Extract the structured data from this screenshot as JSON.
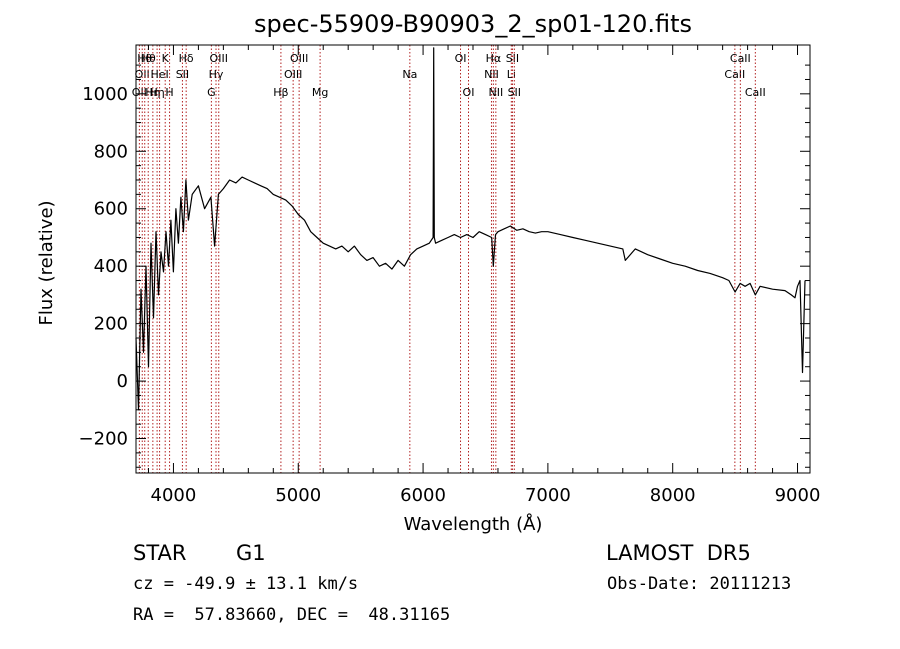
{
  "chart_data": {
    "type": "line",
    "title": "spec-55909-B90903_2_sp01-120.fits",
    "xlabel": "Wavelength (Å)",
    "ylabel": "Flux (relative)",
    "xlim": [
      3700,
      9100
    ],
    "ylim": [
      -320,
      1170
    ],
    "xticks": [
      4000,
      5000,
      6000,
      7000,
      8000,
      9000
    ],
    "yticks": [
      -200,
      0,
      200,
      400,
      600,
      800,
      1000
    ],
    "grid": false,
    "series": [
      {
        "x": [
          3700,
          3720,
          3740,
          3760,
          3780,
          3800,
          3820,
          3840,
          3860,
          3880,
          3900,
          3920,
          3940,
          3960,
          3980,
          4000,
          4020,
          4040,
          4060,
          4080,
          4100,
          4120,
          4150,
          4200,
          4250,
          4300,
          4330,
          4360,
          4400,
          4450,
          4500,
          4550,
          4600,
          4650,
          4700,
          4750,
          4800,
          4850,
          4900,
          4950,
          5000,
          5050,
          5100,
          5150,
          5200,
          5250,
          5300,
          5350,
          5400,
          5450,
          5500,
          5550,
          5600,
          5650,
          5700,
          5750,
          5800,
          5850,
          5900,
          5950,
          6000,
          6050,
          6080,
          6085,
          6090,
          6100,
          6150,
          6200,
          6250,
          6300,
          6350,
          6400,
          6450,
          6500,
          6550,
          6563,
          6580,
          6600,
          6650,
          6700,
          6750,
          6800,
          6850,
          6900,
          6950,
          7000,
          7100,
          7200,
          7300,
          7400,
          7500,
          7600,
          7620,
          7700,
          7800,
          7900,
          8000,
          8100,
          8200,
          8300,
          8400,
          8450,
          8500,
          8540,
          8580,
          8620,
          8662,
          8700,
          8800,
          8900,
          8950,
          8980,
          9000,
          9020,
          9040,
          9060
        ],
        "y": [
          150,
          -100,
          320,
          100,
          400,
          50,
          480,
          220,
          520,
          300,
          450,
          380,
          520,
          400,
          560,
          380,
          600,
          480,
          640,
          520,
          700,
          560,
          650,
          680,
          600,
          640,
          470,
          650,
          670,
          700,
          690,
          710,
          700,
          690,
          680,
          670,
          650,
          640,
          630,
          610,
          580,
          560,
          520,
          500,
          480,
          470,
          460,
          470,
          450,
          470,
          440,
          420,
          430,
          400,
          410,
          390,
          420,
          400,
          440,
          460,
          470,
          480,
          500,
          1160,
          500,
          480,
          490,
          500,
          510,
          500,
          510,
          500,
          520,
          510,
          500,
          400,
          510,
          520,
          530,
          540,
          525,
          530,
          520,
          515,
          520,
          520,
          510,
          500,
          490,
          480,
          470,
          460,
          420,
          460,
          440,
          425,
          410,
          400,
          385,
          375,
          360,
          350,
          310,
          340,
          330,
          340,
          300,
          330,
          320,
          315,
          300,
          290,
          330,
          350,
          30,
          350
        ]
      }
    ],
    "line_markers": [
      {
        "wavelength": 3727,
        "row": 3,
        "label": "OII"
      },
      {
        "wavelength": 3750,
        "row": 2,
        "label": "OII"
      },
      {
        "wavelength": 3770,
        "row": 1,
        "label": "Hθ"
      },
      {
        "wavelength": 3798,
        "row": 1,
        "label": "Hθ"
      },
      {
        "wavelength": 3835,
        "row": 3,
        "label": "Hη"
      },
      {
        "wavelength": 3869,
        "row": 3,
        "label": "Hη"
      },
      {
        "wavelength": 3889,
        "row": 2,
        "label": "HeI"
      },
      {
        "wavelength": 3934,
        "row": 1,
        "label": "K"
      },
      {
        "wavelength": 3969,
        "row": 3,
        "label": "H"
      },
      {
        "wavelength": 4072,
        "row": 2,
        "label": "SII"
      },
      {
        "wavelength": 4102,
        "row": 1,
        "label": "Hδ"
      },
      {
        "wavelength": 4304,
        "row": 3,
        "label": "G"
      },
      {
        "wavelength": 4341,
        "row": 2,
        "label": "Hγ"
      },
      {
        "wavelength": 4363,
        "row": 1,
        "label": "OIII"
      },
      {
        "wavelength": 4861,
        "row": 3,
        "label": "Hβ"
      },
      {
        "wavelength": 4959,
        "row": 2,
        "label": "OIII"
      },
      {
        "wavelength": 5007,
        "row": 1,
        "label": "OIII"
      },
      {
        "wavelength": 5175,
        "row": 3,
        "label": "Mg"
      },
      {
        "wavelength": 5894,
        "row": 2,
        "label": "Na"
      },
      {
        "wavelength": 6300,
        "row": 1,
        "label": "OI"
      },
      {
        "wavelength": 6364,
        "row": 3,
        "label": "OI"
      },
      {
        "wavelength": 6548,
        "row": 2,
        "label": "NII"
      },
      {
        "wavelength": 6563,
        "row": 1,
        "label": "Hα"
      },
      {
        "wavelength": 6583,
        "row": 3,
        "label": "NII"
      },
      {
        "wavelength": 6707,
        "row": 2,
        "label": "Li"
      },
      {
        "wavelength": 6716,
        "row": 1,
        "label": "SII"
      },
      {
        "wavelength": 6731,
        "row": 3,
        "label": "SII"
      },
      {
        "wavelength": 8498,
        "row": 2,
        "label": "CaII"
      },
      {
        "wavelength": 8542,
        "row": 1,
        "label": "CaII"
      },
      {
        "wavelength": 8662,
        "row": 3,
        "label": "CaII"
      }
    ]
  },
  "info": {
    "object_class": "STAR",
    "subclass": "G1",
    "survey": "LAMOST  DR5",
    "redshift": "cz = -49.9 ± 13.1 km/s",
    "obs_date": "Obs-Date: 20111213",
    "coordinates": "RA =  57.83660, DEC =  48.31165"
  },
  "colors": {
    "axes": "#000000",
    "spectrum": "#000000",
    "line_markers": "#b22222"
  }
}
